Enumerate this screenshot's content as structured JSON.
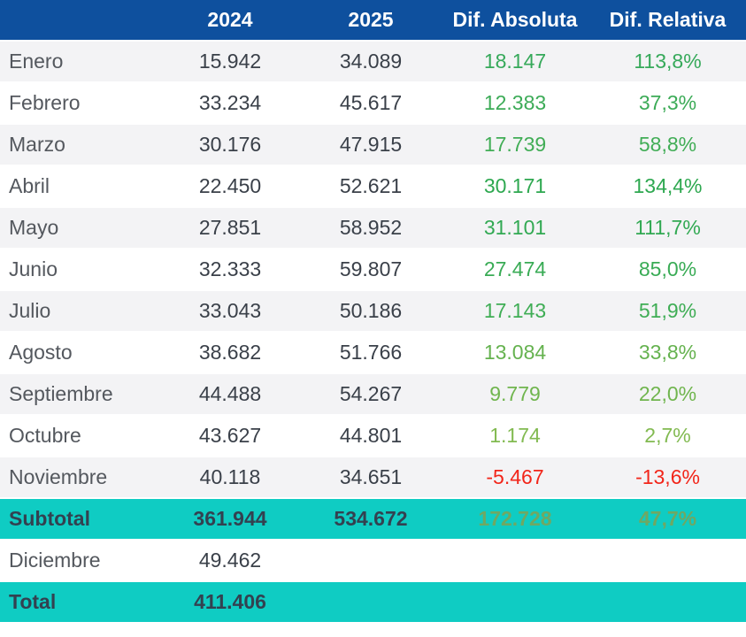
{
  "header": {
    "month_col": "",
    "col_2024": "2024",
    "col_2025": "2025",
    "col_dif_abs": "Dif. Absoluta",
    "col_dif_rel": "Dif. Relativa",
    "background": "#0e509e",
    "text_color": "#ffffff"
  },
  "colors": {
    "row_alt": "#f3f3f5",
    "row_plain": "#ffffff",
    "highlight_row": "#0fccc3",
    "month_text": "#54585e",
    "number_text": "#3a4049",
    "bold_row_text": "#334150",
    "negative": "#f2261a",
    "positive_strong": "#2ea850",
    "positive_weak": "#82ba51",
    "highlight_diff": "#6fa863"
  },
  "chart_data": {
    "type": "table",
    "title": "",
    "columns": [
      "Mes",
      "2024",
      "2025",
      "Dif. Absoluta",
      "Dif. Relativa"
    ],
    "subtotal_2024": 361944,
    "subtotal_2025": 534672,
    "subtotal_dif_abs": 172728,
    "subtotal_dif_rel": "47,7%",
    "total_2024": 411406
  },
  "rows": [
    {
      "label": "Enero",
      "y2024": "15.942",
      "y2025": "34.089",
      "dif_abs": "18.147",
      "dif_rel": "113,8%",
      "dif_color": "#36a95a",
      "variant": "alt"
    },
    {
      "label": "Febrero",
      "y2024": "33.234",
      "y2025": "45.617",
      "dif_abs": "12.383",
      "dif_rel": "37,3%",
      "dif_color": "#3cab57",
      "variant": "plain"
    },
    {
      "label": "Marzo",
      "y2024": "30.176",
      "y2025": "47.915",
      "dif_abs": "17.739",
      "dif_rel": "58,8%",
      "dif_color": "#41ad56",
      "variant": "alt"
    },
    {
      "label": "Abril",
      "y2024": "22.450",
      "y2025": "52.621",
      "dif_abs": "30.171",
      "dif_rel": "134,4%",
      "dif_color": "#2ea850",
      "variant": "plain"
    },
    {
      "label": "Mayo",
      "y2024": "27.851",
      "y2025": "58.952",
      "dif_abs": "31.101",
      "dif_rel": "111,7%",
      "dif_color": "#32a953",
      "variant": "alt"
    },
    {
      "label": "Junio",
      "y2024": "32.333",
      "y2025": "59.807",
      "dif_abs": "27.474",
      "dif_rel": "85,0%",
      "dif_color": "#39ab55",
      "variant": "plain"
    },
    {
      "label": "Julio",
      "y2024": "33.043",
      "y2025": "50.186",
      "dif_abs": "17.143",
      "dif_rel": "51,9%",
      "dif_color": "#3fad55",
      "variant": "alt"
    },
    {
      "label": "Agosto",
      "y2024": "38.682",
      "y2025": "51.766",
      "dif_abs": "13.084",
      "dif_rel": "33,8%",
      "dif_color": "#65b24f",
      "variant": "plain"
    },
    {
      "label": "Septiembre",
      "y2024": "44.488",
      "y2025": "54.267",
      "dif_abs": "9.779",
      "dif_rel": "22,0%",
      "dif_color": "#70b54e",
      "variant": "alt"
    },
    {
      "label": "Octubre",
      "y2024": "43.627",
      "y2025": "44.801",
      "dif_abs": "1.174",
      "dif_rel": "2,7%",
      "dif_color": "#82ba51",
      "variant": "plain"
    },
    {
      "label": "Noviembre",
      "y2024": "40.118",
      "y2025": "34.651",
      "dif_abs": "-5.467",
      "dif_rel": "-13,6%",
      "dif_color": "#f2261a",
      "variant": "alt"
    },
    {
      "label": "Subtotal",
      "y2024": "361.944",
      "y2025": "534.672",
      "dif_abs": "172.728",
      "dif_rel": "47,7%",
      "dif_color": "#6fa863",
      "variant": "highlight"
    },
    {
      "label": "Diciembre",
      "y2024": "49.462",
      "y2025": "",
      "dif_abs": "",
      "dif_rel": "",
      "dif_color": "",
      "variant": "plain"
    },
    {
      "label": "Total",
      "y2024": "411.406",
      "y2025": "",
      "dif_abs": "",
      "dif_rel": "",
      "dif_color": "",
      "variant": "highlight"
    }
  ]
}
